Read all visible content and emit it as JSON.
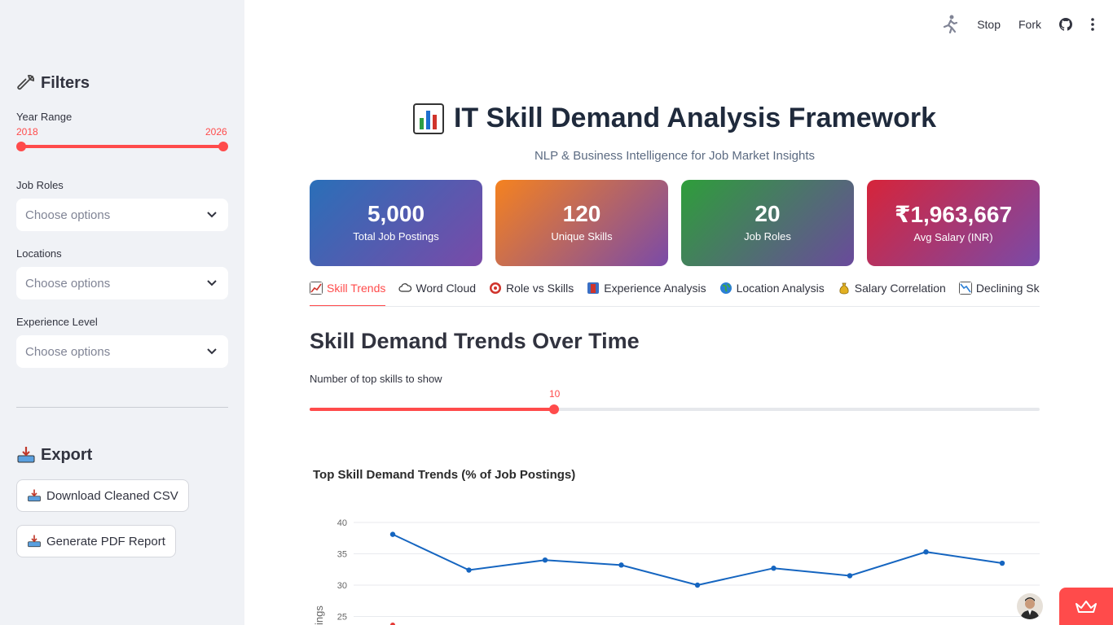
{
  "sidebar": {
    "filters_heading": "Filters",
    "year_range": {
      "label": "Year Range",
      "min": "2018",
      "max": "2026"
    },
    "job_roles": {
      "label": "Job Roles",
      "placeholder": "Choose options"
    },
    "locations": {
      "label": "Locations",
      "placeholder": "Choose options"
    },
    "experience": {
      "label": "Experience Level",
      "placeholder": "Choose options"
    },
    "export_heading": "Export",
    "download_csv": "Download Cleaned CSV",
    "generate_pdf": "Generate PDF Report"
  },
  "topbar": {
    "stop": "Stop",
    "fork": "Fork"
  },
  "header": {
    "title": "IT Skill Demand Analysis Framework",
    "subtitle": "NLP & Business Intelligence for Job Market Insights"
  },
  "kpis": [
    {
      "value": "5,000",
      "label": "Total Job Postings"
    },
    {
      "value": "120",
      "label": "Unique Skills"
    },
    {
      "value": "20",
      "label": "Job Roles"
    },
    {
      "value": "₹1,963,667",
      "label": "Avg Salary (INR)"
    }
  ],
  "tabs": [
    {
      "label": "Skill Trends",
      "icon": "chart-increasing-icon"
    },
    {
      "label": "Word Cloud",
      "icon": "cloud-icon"
    },
    {
      "label": "Role vs Skills",
      "icon": "target-icon"
    },
    {
      "label": "Experience Analysis",
      "icon": "briefcase-icon"
    },
    {
      "label": "Location Analysis",
      "icon": "globe-icon"
    },
    {
      "label": "Salary Correlation",
      "icon": "money-bag-icon"
    },
    {
      "label": "Declining Skills",
      "icon": "chart-decreasing-icon"
    }
  ],
  "section": {
    "title": "Skill Demand Trends Over Time",
    "slider_label": "Number of top skills to show",
    "slider_value": "10",
    "slider_fraction": 0.335
  },
  "colors": {
    "accent": "#ff4b4b",
    "line_blue": "#1565c0"
  },
  "chart_data": {
    "type": "line",
    "title": "Top Skill Demand Trends (% of Job Postings)",
    "ylabel": "ings",
    "ylim": [
      23.5,
      42
    ],
    "yticks": [
      25,
      30,
      35,
      40
    ],
    "grid": true,
    "series": [
      {
        "values": [
          38.1,
          32.4,
          34.0,
          33.2,
          30.0,
          32.7,
          31.5,
          35.3,
          33.5
        ]
      }
    ]
  }
}
